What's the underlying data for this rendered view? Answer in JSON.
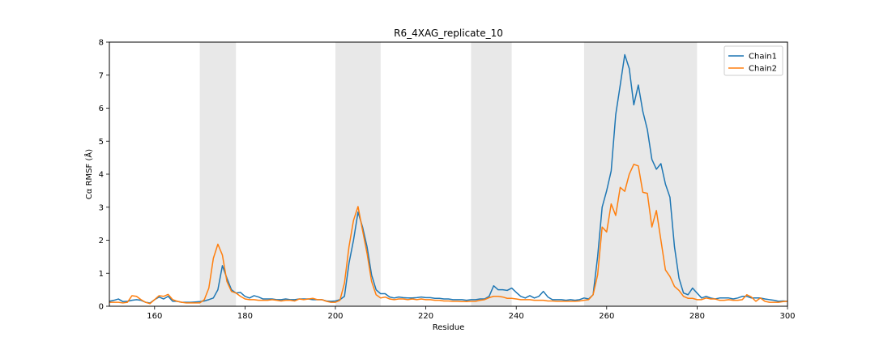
{
  "chart_data": {
    "type": "line",
    "title": "R6_4XAG_replicate_10",
    "xlabel": "Residue",
    "ylabel": "Cα RMSF (Å)",
    "xlim": [
      150,
      300
    ],
    "ylim": [
      0,
      8
    ],
    "xticks": [
      160,
      180,
      200,
      220,
      240,
      260,
      280,
      300
    ],
    "yticks": [
      0,
      1,
      2,
      3,
      4,
      5,
      6,
      7,
      8
    ],
    "grid": false,
    "legend_position": "top-right",
    "shaded_regions": [
      [
        170,
        178
      ],
      [
        200,
        210
      ],
      [
        230,
        239
      ],
      [
        255,
        280
      ]
    ],
    "colors": {
      "Chain1": "#1f77b4",
      "Chain2": "#ff7f0e",
      "shade": "#e8e8e8"
    },
    "series": [
      {
        "name": "Chain1",
        "x": [
          150,
          151,
          152,
          153,
          154,
          155,
          156,
          157,
          158,
          159,
          160,
          161,
          162,
          163,
          164,
          165,
          166,
          167,
          168,
          169,
          170,
          171,
          172,
          173,
          174,
          175,
          176,
          177,
          178,
          179,
          180,
          181,
          182,
          183,
          184,
          185,
          186,
          187,
          188,
          189,
          190,
          191,
          192,
          193,
          194,
          195,
          196,
          197,
          198,
          199,
          200,
          201,
          202,
          203,
          204,
          205,
          206,
          207,
          208,
          209,
          210,
          211,
          212,
          213,
          214,
          215,
          216,
          217,
          218,
          219,
          220,
          221,
          222,
          223,
          224,
          225,
          226,
          227,
          228,
          229,
          230,
          231,
          232,
          233,
          234,
          235,
          236,
          237,
          238,
          239,
          240,
          241,
          242,
          243,
          244,
          245,
          246,
          247,
          248,
          249,
          250,
          251,
          252,
          253,
          254,
          255,
          256,
          257,
          258,
          259,
          260,
          261,
          262,
          263,
          264,
          265,
          266,
          267,
          268,
          269,
          270,
          271,
          272,
          273,
          274,
          275,
          276,
          277,
          278,
          279,
          280,
          281,
          282,
          283,
          284,
          285,
          286,
          287,
          288,
          289,
          290,
          291,
          292,
          293,
          294,
          295,
          296,
          297,
          298,
          299,
          300
        ],
        "values": [
          0.15,
          0.18,
          0.22,
          0.14,
          0.15,
          0.18,
          0.2,
          0.18,
          0.12,
          0.1,
          0.2,
          0.28,
          0.22,
          0.3,
          0.15,
          0.15,
          0.12,
          0.12,
          0.12,
          0.13,
          0.14,
          0.16,
          0.2,
          0.25,
          0.5,
          1.23,
          0.85,
          0.5,
          0.4,
          0.42,
          0.3,
          0.25,
          0.32,
          0.28,
          0.22,
          0.22,
          0.22,
          0.2,
          0.2,
          0.22,
          0.2,
          0.2,
          0.22,
          0.22,
          0.22,
          0.2,
          0.2,
          0.2,
          0.16,
          0.15,
          0.16,
          0.2,
          0.3,
          1.3,
          2.0,
          2.85,
          2.4,
          1.8,
          0.95,
          0.5,
          0.38,
          0.38,
          0.28,
          0.25,
          0.28,
          0.26,
          0.25,
          0.25,
          0.26,
          0.28,
          0.26,
          0.26,
          0.24,
          0.24,
          0.22,
          0.22,
          0.2,
          0.2,
          0.2,
          0.18,
          0.2,
          0.2,
          0.22,
          0.22,
          0.3,
          0.62,
          0.5,
          0.5,
          0.48,
          0.55,
          0.42,
          0.3,
          0.25,
          0.32,
          0.25,
          0.3,
          0.45,
          0.28,
          0.2,
          0.2,
          0.2,
          0.18,
          0.2,
          0.18,
          0.2,
          0.25,
          0.22,
          0.35,
          1.5,
          3.0,
          3.5,
          4.1,
          5.8,
          6.7,
          7.62,
          7.2,
          6.1,
          6.7,
          5.9,
          5.35,
          4.45,
          4.15,
          4.32,
          3.7,
          3.3,
          1.8,
          0.85,
          0.4,
          0.35,
          0.55,
          0.4,
          0.25,
          0.3,
          0.25,
          0.22,
          0.25,
          0.25,
          0.25,
          0.22,
          0.25,
          0.3,
          0.3,
          0.25,
          0.25,
          0.25,
          0.22,
          0.2,
          0.18,
          0.15,
          0.16,
          0.15
        ]
      },
      {
        "name": "Chain2",
        "x": [
          150,
          151,
          152,
          153,
          154,
          155,
          156,
          157,
          158,
          159,
          160,
          161,
          162,
          163,
          164,
          165,
          166,
          167,
          168,
          169,
          170,
          171,
          172,
          173,
          174,
          175,
          176,
          177,
          178,
          179,
          180,
          181,
          182,
          183,
          184,
          185,
          186,
          187,
          188,
          189,
          190,
          191,
          192,
          193,
          194,
          195,
          196,
          197,
          198,
          199,
          200,
          201,
          202,
          203,
          204,
          205,
          206,
          207,
          208,
          209,
          210,
          211,
          212,
          213,
          214,
          215,
          216,
          217,
          218,
          219,
          220,
          221,
          222,
          223,
          224,
          225,
          226,
          227,
          228,
          229,
          230,
          231,
          232,
          233,
          234,
          235,
          236,
          237,
          238,
          239,
          240,
          241,
          242,
          243,
          244,
          245,
          246,
          247,
          248,
          249,
          250,
          251,
          252,
          253,
          254,
          255,
          256,
          257,
          258,
          259,
          260,
          261,
          262,
          263,
          264,
          265,
          266,
          267,
          268,
          269,
          270,
          271,
          272,
          273,
          274,
          275,
          276,
          277,
          278,
          279,
          280,
          281,
          282,
          283,
          284,
          285,
          286,
          287,
          288,
          289,
          290,
          291,
          292,
          293,
          294,
          295,
          296,
          297,
          298,
          299,
          300
        ],
        "values": [
          0.12,
          0.12,
          0.12,
          0.1,
          0.12,
          0.32,
          0.3,
          0.2,
          0.12,
          0.08,
          0.2,
          0.32,
          0.3,
          0.36,
          0.2,
          0.15,
          0.12,
          0.1,
          0.1,
          0.1,
          0.1,
          0.2,
          0.55,
          1.45,
          1.88,
          1.55,
          0.75,
          0.45,
          0.4,
          0.3,
          0.22,
          0.2,
          0.2,
          0.18,
          0.18,
          0.18,
          0.2,
          0.18,
          0.16,
          0.18,
          0.18,
          0.16,
          0.22,
          0.2,
          0.22,
          0.24,
          0.2,
          0.2,
          0.15,
          0.12,
          0.12,
          0.18,
          0.7,
          1.8,
          2.6,
          3.02,
          2.3,
          1.6,
          0.75,
          0.35,
          0.25,
          0.28,
          0.22,
          0.2,
          0.22,
          0.22,
          0.2,
          0.22,
          0.2,
          0.22,
          0.2,
          0.2,
          0.18,
          0.18,
          0.16,
          0.16,
          0.15,
          0.15,
          0.14,
          0.14,
          0.15,
          0.15,
          0.18,
          0.2,
          0.26,
          0.3,
          0.3,
          0.28,
          0.24,
          0.24,
          0.22,
          0.2,
          0.2,
          0.2,
          0.18,
          0.18,
          0.18,
          0.16,
          0.16,
          0.15,
          0.15,
          0.15,
          0.15,
          0.15,
          0.16,
          0.18,
          0.2,
          0.35,
          0.95,
          2.4,
          2.25,
          3.1,
          2.75,
          3.6,
          3.48,
          4.0,
          4.3,
          4.25,
          3.45,
          3.42,
          2.4,
          2.9,
          2.0,
          1.1,
          0.9,
          0.6,
          0.48,
          0.3,
          0.24,
          0.24,
          0.2,
          0.2,
          0.25,
          0.22,
          0.22,
          0.18,
          0.18,
          0.2,
          0.18,
          0.18,
          0.2,
          0.35,
          0.28,
          0.15,
          0.25,
          0.15,
          0.12,
          0.12,
          0.12,
          0.14,
          0.15
        ]
      }
    ]
  }
}
